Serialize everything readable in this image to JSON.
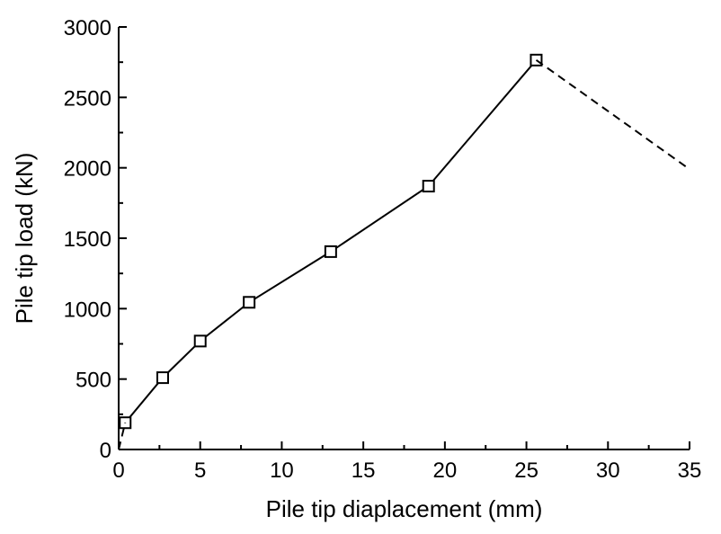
{
  "chart_data": {
    "type": "line",
    "xlabel": "Pile tip diaplacement (mm)",
    "ylabel": "Pile tip load (kN)",
    "xlim": [
      0,
      35
    ],
    "ylim": [
      0,
      3000
    ],
    "xticks": [
      0,
      5,
      10,
      15,
      20,
      25,
      30,
      35
    ],
    "yticks": [
      0,
      500,
      1000,
      1500,
      2000,
      2500,
      3000
    ],
    "grid": false,
    "series": [
      {
        "style": "solid",
        "marker": "open-square",
        "x": [
          0.4,
          2.7,
          5.0,
          8.0,
          13.0,
          19.0,
          25.6
        ],
        "y": [
          190,
          510,
          770,
          1045,
          1405,
          1870,
          2765
        ]
      },
      {
        "style": "dashed",
        "marker": "none",
        "x": [
          0,
          0.4
        ],
        "y": [
          0,
          190
        ]
      },
      {
        "style": "dashed",
        "marker": "none",
        "x": [
          25.6,
          35
        ],
        "y": [
          2765,
          1990
        ]
      }
    ]
  }
}
